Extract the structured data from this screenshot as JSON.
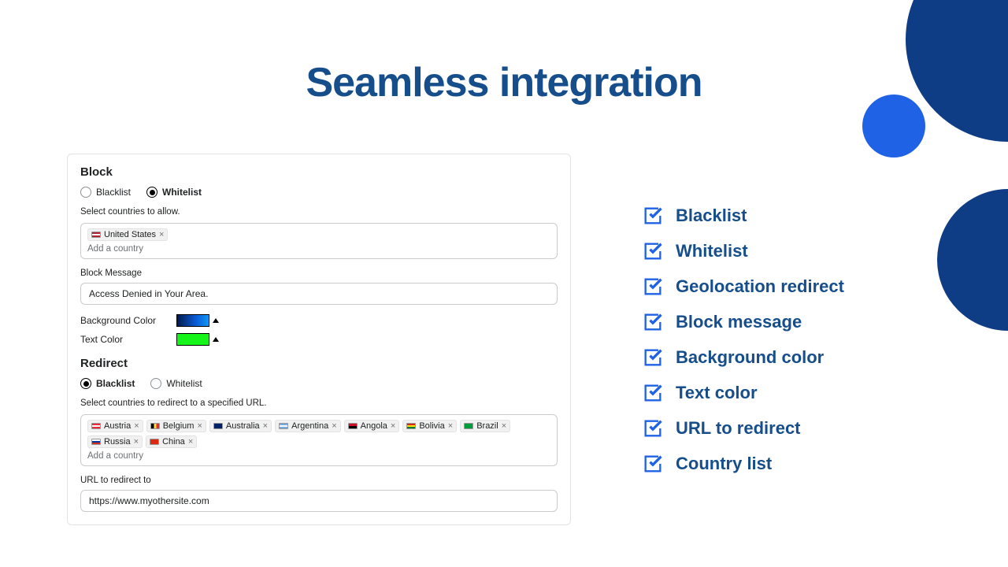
{
  "title": "Seamless integration",
  "colors": {
    "brand_dark": "#164e8c",
    "accent_blue": "#1f62e6",
    "decor_navy": "#0f3d85",
    "check_blue": "#1f62e6"
  },
  "panel": {
    "block": {
      "heading": "Block",
      "radio_blacklist": "Blacklist",
      "radio_whitelist": "Whitelist",
      "selected": "whitelist",
      "allow_label": "Select countries to allow.",
      "countries": [
        {
          "name": "United States",
          "flag": "us"
        }
      ],
      "add_placeholder": "Add a country",
      "block_message_label": "Block Message",
      "block_message_value": "Access Denied in Your Area.",
      "bg_color_label": "Background Color",
      "bg_color_hex": "#0a3bd6",
      "text_color_label": "Text Color",
      "text_color_hex": "#15f51a"
    },
    "redirect": {
      "heading": "Redirect",
      "radio_blacklist": "Blacklist",
      "radio_whitelist": "Whitelist",
      "selected": "blacklist",
      "label": "Select countries to redirect to a specified URL.",
      "countries": [
        {
          "name": "Austria",
          "flag": "at"
        },
        {
          "name": "Belgium",
          "flag": "be"
        },
        {
          "name": "Australia",
          "flag": "au"
        },
        {
          "name": "Argentina",
          "flag": "ar"
        },
        {
          "name": "Angola",
          "flag": "ao"
        },
        {
          "name": "Bolivia",
          "flag": "bo"
        },
        {
          "name": "Brazil",
          "flag": "br"
        },
        {
          "name": "Russia",
          "flag": "ru"
        },
        {
          "name": "China",
          "flag": "cn"
        }
      ],
      "add_placeholder": "Add a country",
      "url_label": "URL to redirect to",
      "url_value": "https://www.myothersite.com"
    }
  },
  "features": [
    "Blacklist",
    "Whitelist",
    "Geolocation redirect",
    "Block message",
    "Background color",
    "Text color",
    "URL to redirect",
    "Country list"
  ]
}
